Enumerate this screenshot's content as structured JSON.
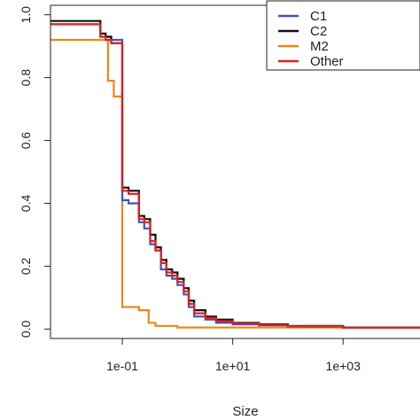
{
  "chart_data": {
    "type": "line",
    "step": true,
    "title": "",
    "xlabel": "Size",
    "ylabel": "",
    "x_scale": "log10",
    "xlim": [
      0.005,
      40000
    ],
    "ylim": [
      -0.03,
      1.03
    ],
    "x_ticks": [
      {
        "value": 0.1,
        "label": "1e-01"
      },
      {
        "value": 10,
        "label": "1e+01"
      },
      {
        "value": 1000,
        "label": "1e+03"
      }
    ],
    "y_ticks": [
      {
        "value": 0.0,
        "label": "0.0"
      },
      {
        "value": 0.2,
        "label": "0.2"
      },
      {
        "value": 0.4,
        "label": "0.4"
      },
      {
        "value": 0.6,
        "label": "0.6"
      },
      {
        "value": 0.8,
        "label": "0.8"
      },
      {
        "value": 1.0,
        "label": "1.0"
      }
    ],
    "grid": false,
    "legend_position": "top-right",
    "series": [
      {
        "name": "C1",
        "color": "#3a55c8",
        "x": [
          0.005,
          0.025,
          0.04,
          0.05,
          0.063,
          0.1,
          0.13,
          0.2,
          0.25,
          0.32,
          0.4,
          0.5,
          0.63,
          0.8,
          1.0,
          1.3,
          1.6,
          2.0,
          3.2,
          5,
          10,
          30,
          100,
          1000,
          40000
        ],
        "y": [
          0.97,
          0.97,
          0.93,
          0.93,
          0.92,
          0.41,
          0.4,
          0.34,
          0.32,
          0.27,
          0.25,
          0.19,
          0.17,
          0.16,
          0.14,
          0.11,
          0.07,
          0.04,
          0.03,
          0.02,
          0.015,
          0.012,
          0.008,
          0.004,
          0.001
        ]
      },
      {
        "name": "C2",
        "color": "#111111",
        "x": [
          0.005,
          0.025,
          0.04,
          0.05,
          0.063,
          0.1,
          0.13,
          0.2,
          0.25,
          0.32,
          0.4,
          0.5,
          0.63,
          0.8,
          1.0,
          1.3,
          1.6,
          2.0,
          3.2,
          5,
          10,
          30,
          100,
          1000,
          40000
        ],
        "y": [
          0.98,
          0.98,
          0.94,
          0.93,
          0.91,
          0.45,
          0.44,
          0.36,
          0.35,
          0.3,
          0.26,
          0.22,
          0.19,
          0.18,
          0.16,
          0.13,
          0.09,
          0.06,
          0.04,
          0.03,
          0.02,
          0.015,
          0.01,
          0.005,
          0.001
        ]
      },
      {
        "name": "M2",
        "color": "#e8891a",
        "x": [
          0.005,
          0.035,
          0.055,
          0.07,
          0.1,
          0.2,
          0.3,
          0.4,
          1.0,
          40000
        ],
        "y": [
          0.92,
          0.92,
          0.79,
          0.74,
          0.07,
          0.06,
          0.02,
          0.01,
          0.005,
          0.001
        ]
      },
      {
        "name": "Other",
        "color": "#e02020",
        "x": [
          0.005,
          0.025,
          0.04,
          0.05,
          0.063,
          0.1,
          0.13,
          0.2,
          0.25,
          0.32,
          0.4,
          0.5,
          0.63,
          0.8,
          1.0,
          1.3,
          1.6,
          2.0,
          3.2,
          5,
          10,
          30,
          100,
          1000,
          40000
        ],
        "y": [
          0.97,
          0.97,
          0.93,
          0.92,
          0.91,
          0.44,
          0.43,
          0.35,
          0.34,
          0.28,
          0.25,
          0.21,
          0.18,
          0.17,
          0.15,
          0.12,
          0.08,
          0.05,
          0.035,
          0.025,
          0.018,
          0.013,
          0.009,
          0.004,
          0.001
        ]
      }
    ]
  }
}
